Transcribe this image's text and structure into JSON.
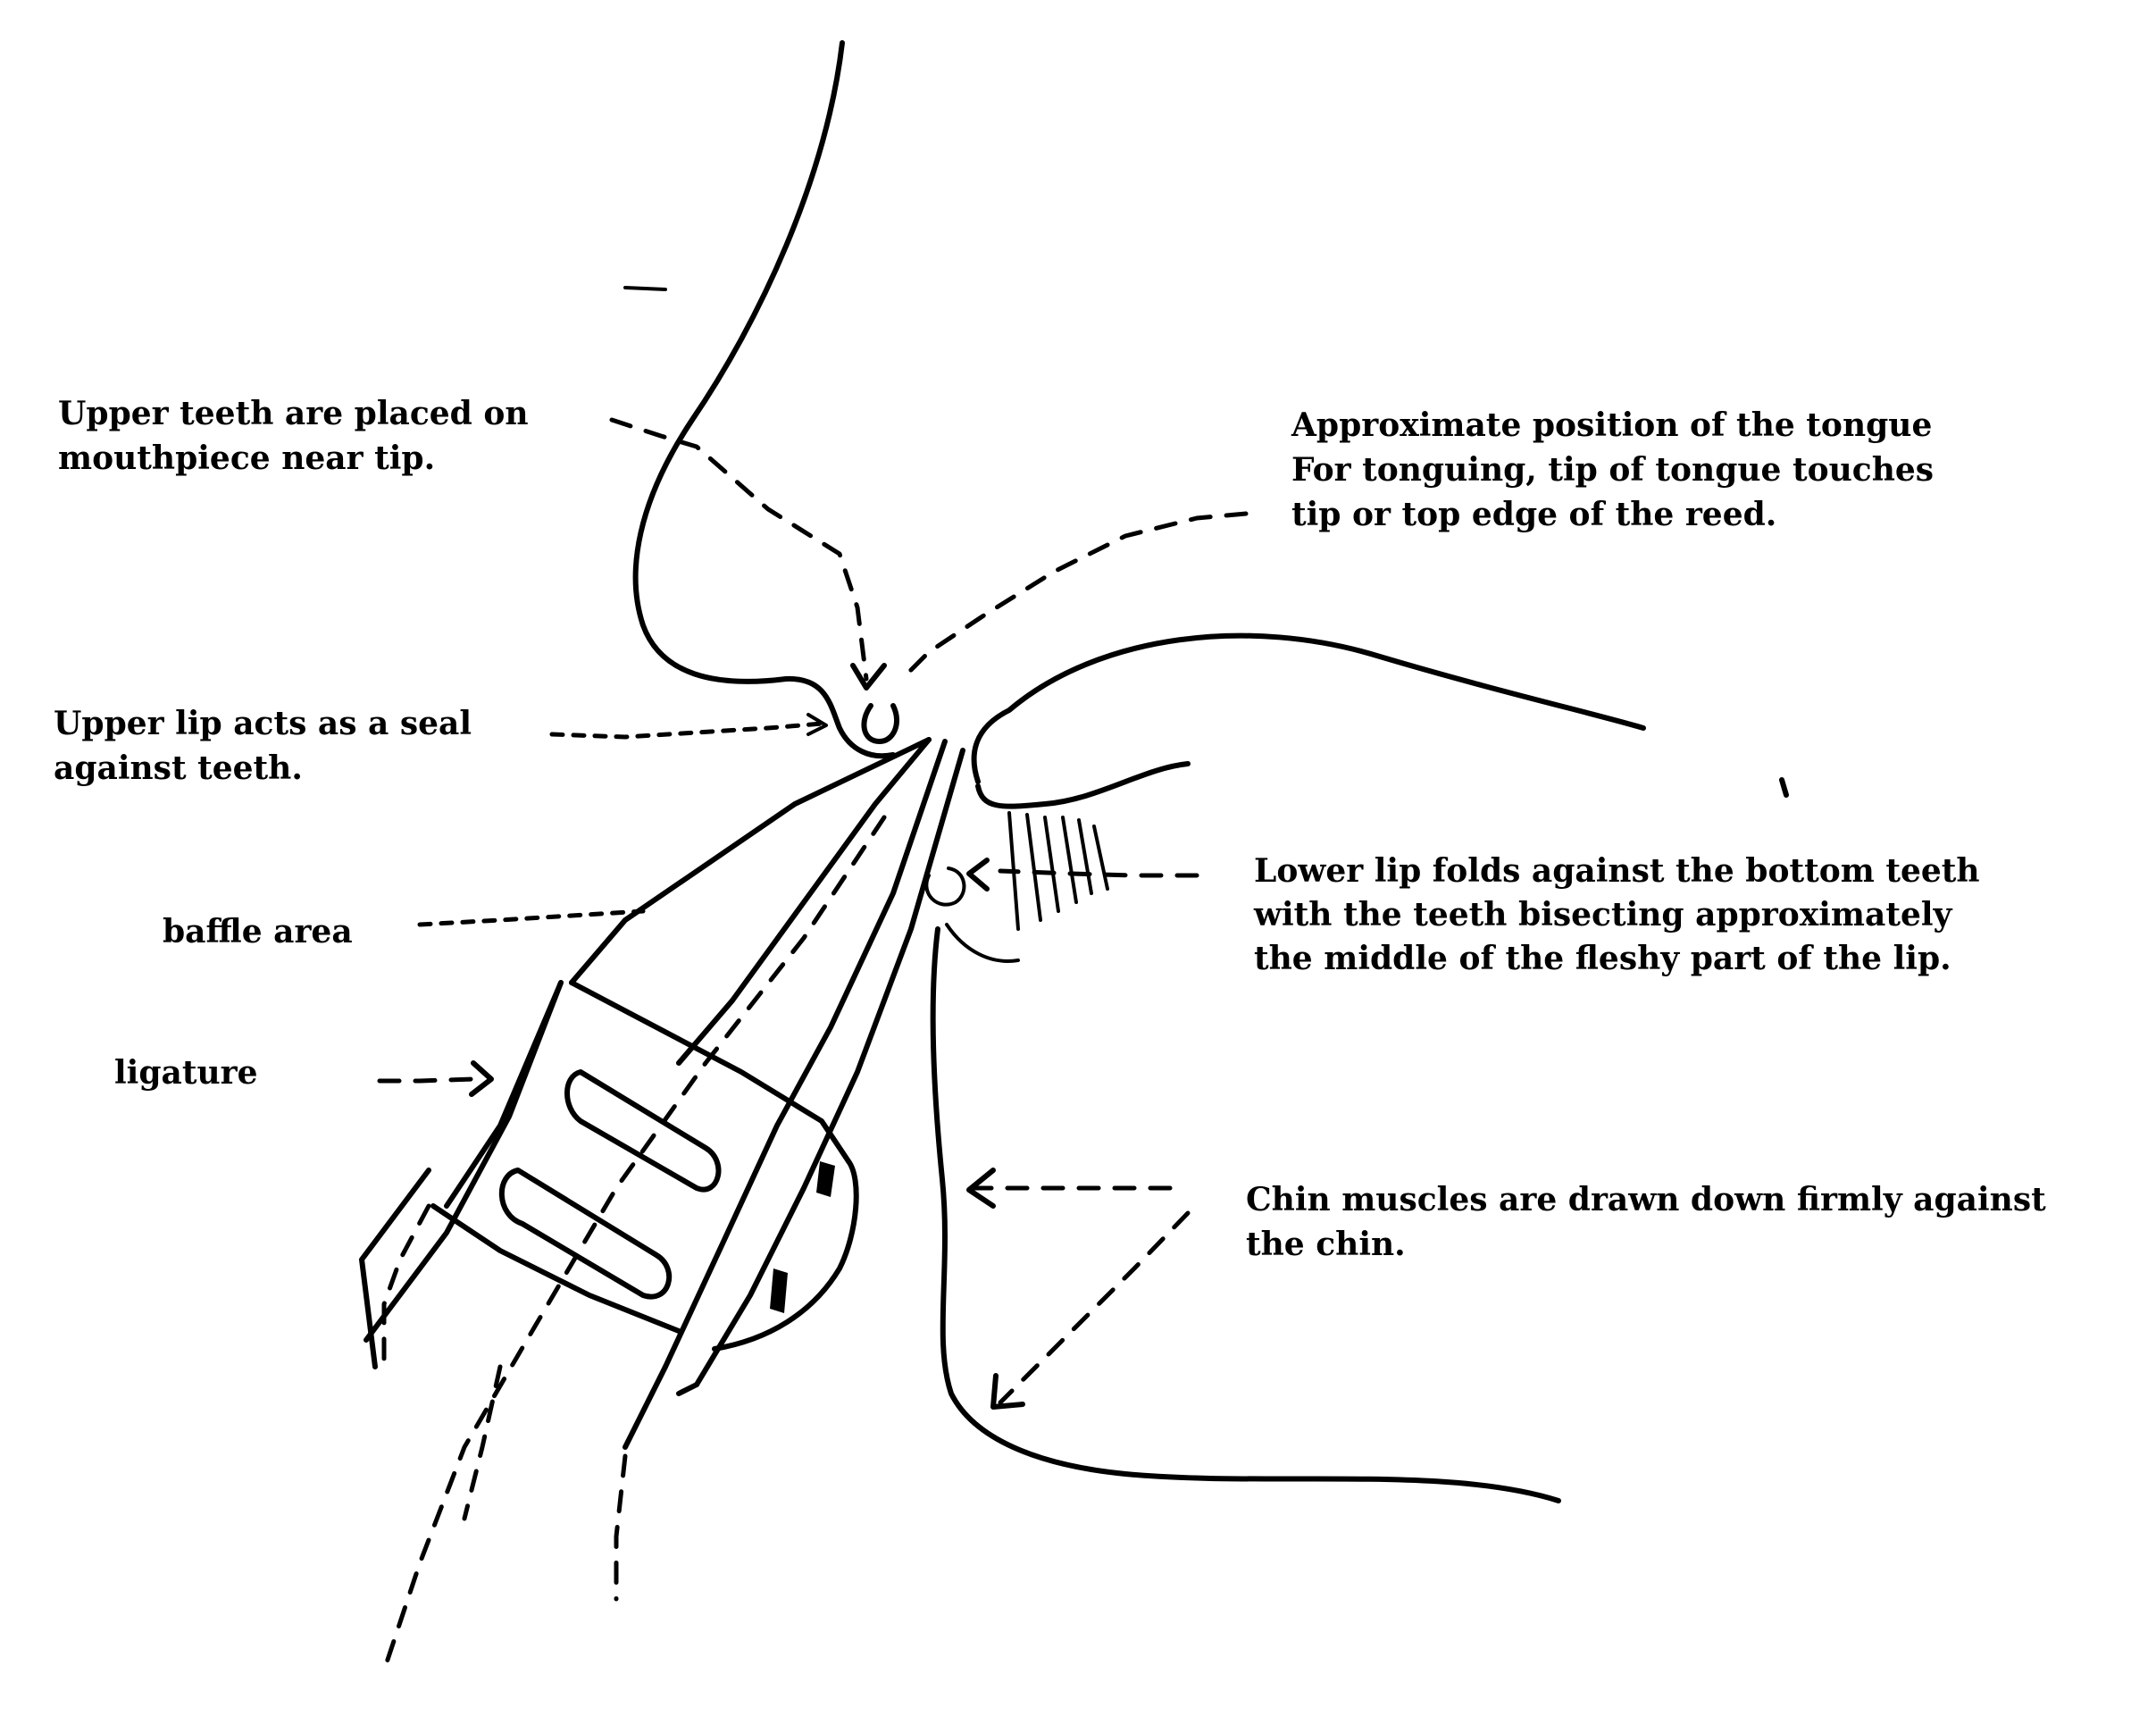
{
  "labels": {
    "upper_teeth": {
      "line1": "Upper teeth are placed on",
      "line2": "mouthpiece near tip."
    },
    "tongue": {
      "line1": "Approximate position of the tongue",
      "line2": "For tonguing, tip of tongue touches",
      "line3": "tip or top edge of the reed."
    },
    "upper_lip": {
      "line1": "Upper lip acts as a seal",
      "line2": "against teeth."
    },
    "baffle": {
      "line1": "baffle area"
    },
    "lower_lip": {
      "line1": "Lower lip folds against the bottom teeth",
      "line2": "with the teeth bisecting approximately",
      "line3": "the middle of the fleshy part of the lip."
    },
    "ligature": {
      "line1": "ligature"
    },
    "chin": {
      "line1": "Chin muscles are drawn down firmly against",
      "line2": "the chin."
    }
  }
}
